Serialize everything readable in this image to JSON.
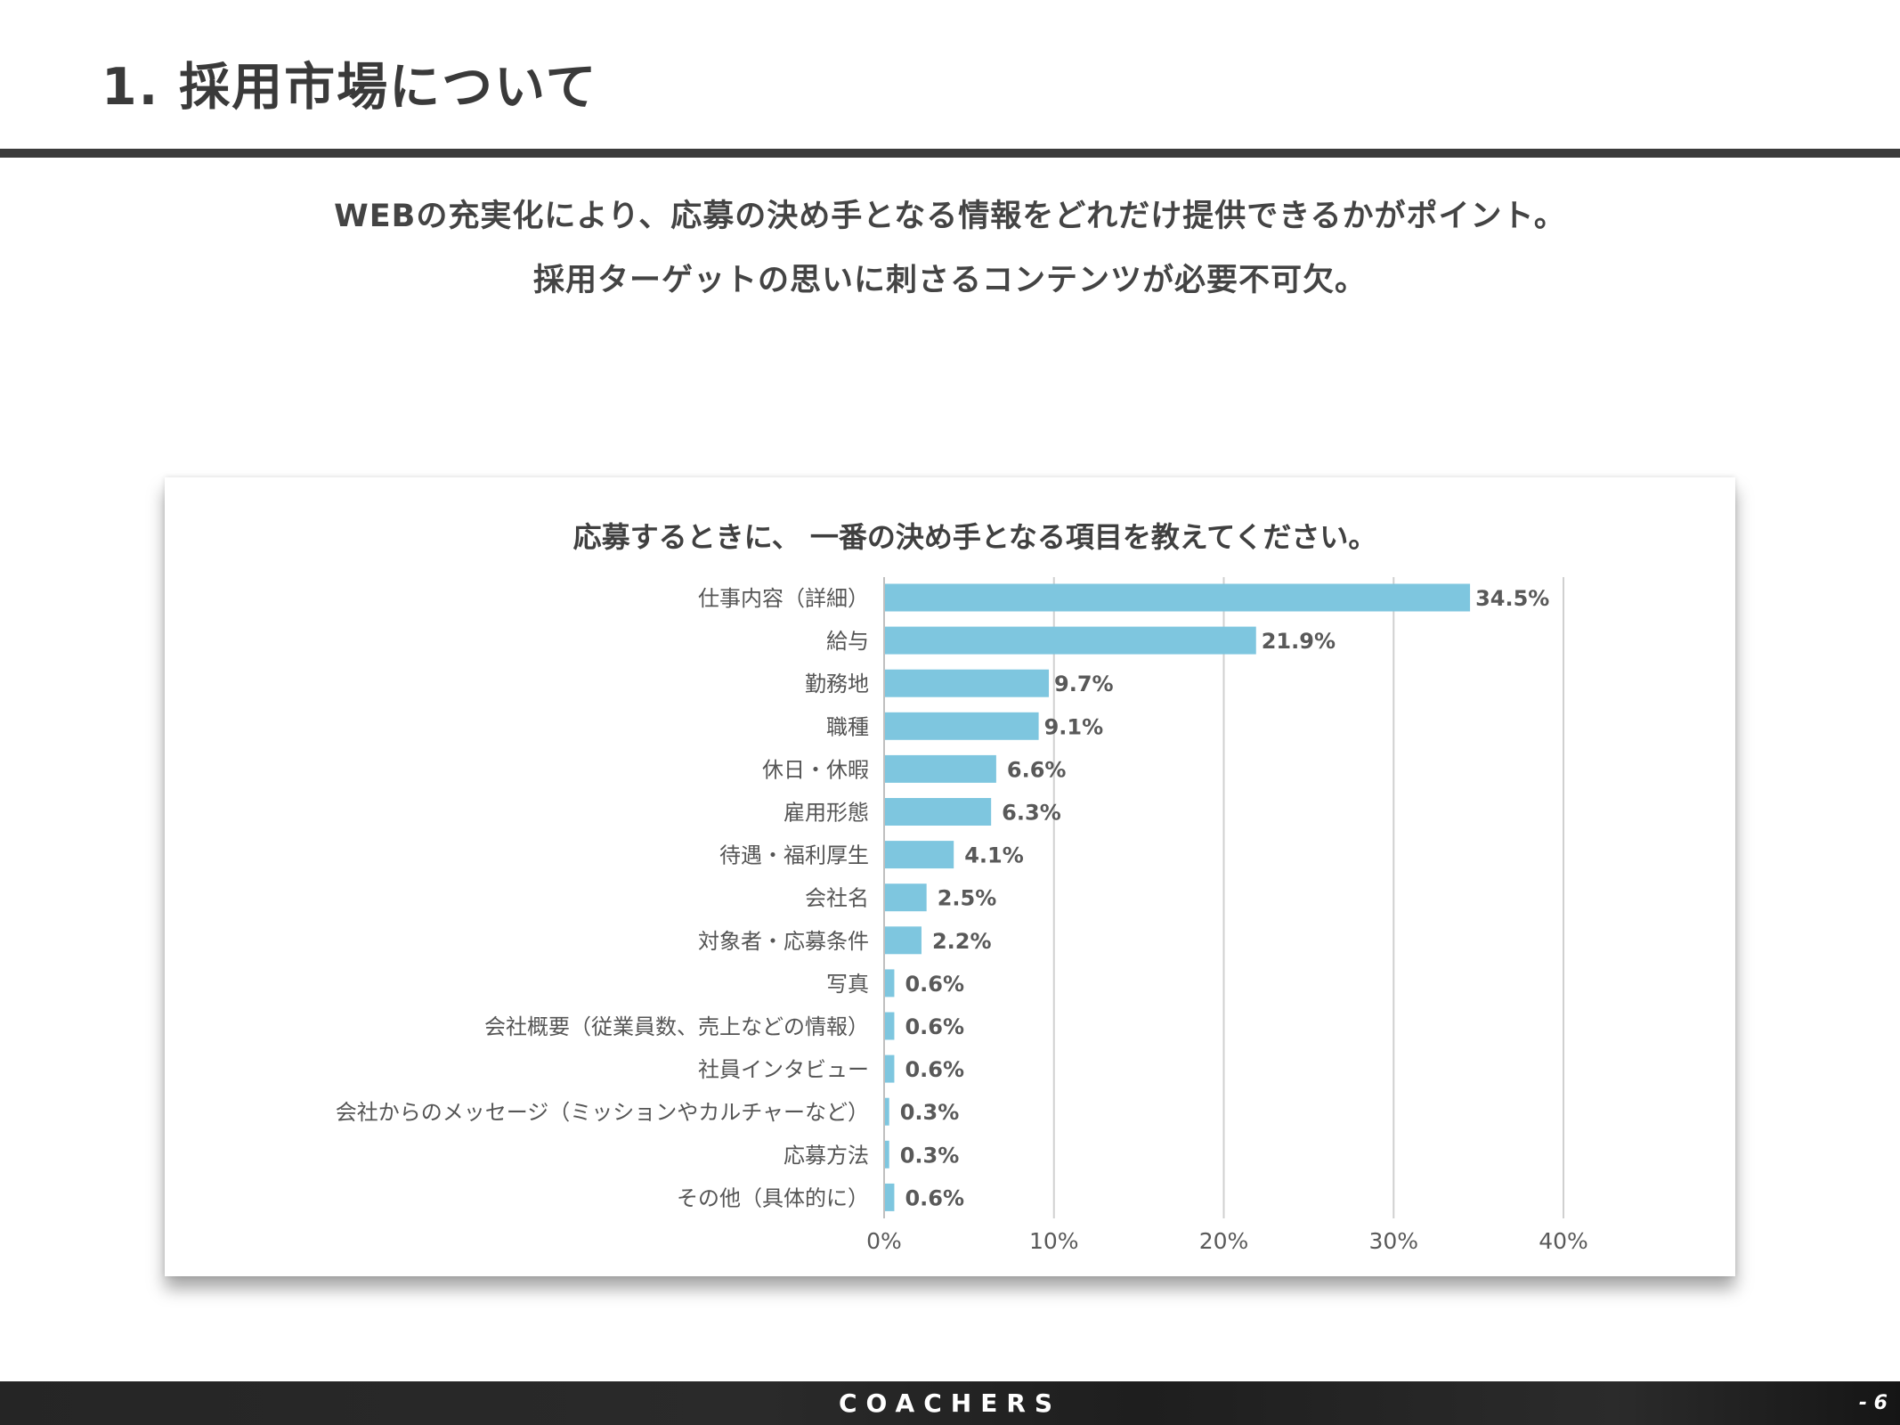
{
  "header": {
    "title": "1. 採用市場について"
  },
  "subtitle": {
    "line1": "WEBの充実化により、応募の決め手となる情報をどれだけ提供できるかがポイント。",
    "line2": "採用ターゲットの思いに刺さるコンテンツが必要不可欠。"
  },
  "chart_data": {
    "type": "bar",
    "orientation": "horizontal",
    "title": "応募するときに、 一番の決め手となる項目を教えてください。",
    "categories": [
      "仕事内容（詳細）",
      "給与",
      "勤務地",
      "職種",
      "休日・休暇",
      "雇用形態",
      "待遇・福利厚生",
      "会社名",
      "対象者・応募条件",
      "写真",
      "会社概要（従業員数、売上などの情報）",
      "社員インタビュー",
      "会社からのメッセージ（ミッションやカルチャーなど）",
      "応募方法",
      "その他（具体的に）"
    ],
    "values": [
      34.5,
      21.9,
      9.7,
      9.1,
      6.6,
      6.3,
      4.1,
      2.5,
      2.2,
      0.6,
      0.6,
      0.6,
      0.3,
      0.3,
      0.6
    ],
    "data_labels": [
      "34.5%",
      "21.9%",
      "9.7%",
      "9.1%",
      "6.6%",
      "6.3%",
      "4.1%",
      "2.5%",
      "2.2%",
      "0.6%",
      "0.6%",
      "0.6%",
      "0.3%",
      "0.3%",
      "0.6%"
    ],
    "xlim": [
      0,
      40
    ],
    "xticks": [
      "0%",
      "10%",
      "20%",
      "30%",
      "40%"
    ],
    "grid": true,
    "bar_color": "#7ec6df"
  },
  "footer": {
    "brand": "COACHERS",
    "page": "- 6"
  }
}
